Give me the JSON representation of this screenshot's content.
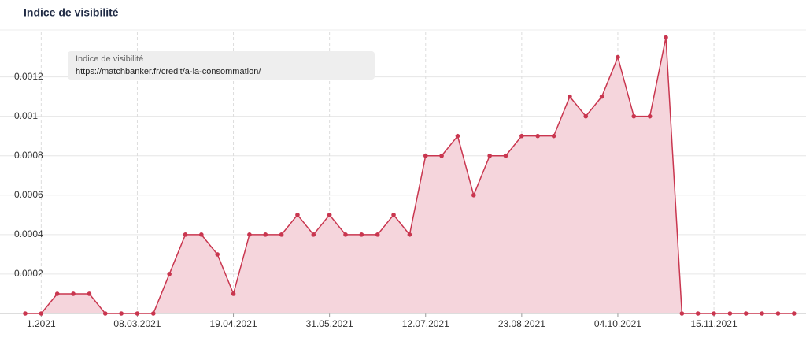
{
  "chart_data": {
    "type": "area",
    "title": "Indice de visibilité",
    "tooltip": {
      "title": "Indice de visibilité",
      "url": "https://matchbanker.fr/credit/a-la-consommation/"
    },
    "categories": [
      null,
      "1.2021",
      null,
      null,
      null,
      null,
      null,
      "08.03.2021",
      null,
      null,
      null,
      null,
      null,
      "19.04.2021",
      null,
      null,
      null,
      null,
      null,
      "31.05.2021",
      null,
      null,
      null,
      null,
      null,
      "12.07.2021",
      null,
      null,
      null,
      null,
      null,
      "23.08.2021",
      null,
      null,
      null,
      null,
      null,
      "04.10.2021",
      null,
      null,
      null,
      null,
      null,
      "15.11.2021",
      null,
      null,
      null,
      null,
      null
    ],
    "values": [
      0,
      0,
      0.0001,
      0.0001,
      0.0001,
      0,
      0,
      0,
      0,
      0.0002,
      0.0004,
      0.0004,
      0.0003,
      0.0001,
      0.0004,
      0.0004,
      0.0004,
      0.0005,
      0.0004,
      0.0005,
      0.0004,
      0.0004,
      0.0004,
      0.0005,
      0.0004,
      0.0008,
      0.0008,
      0.0009,
      0.0006,
      0.0008,
      0.0008,
      0.0009,
      0.0009,
      0.0009,
      0.0011,
      0.001,
      0.0011,
      0.0013,
      0.001,
      0.001,
      0.0014,
      0,
      0,
      0,
      0,
      0,
      0,
      0,
      0
    ],
    "color": "#c9364f",
    "fill": "#f5d5dc",
    "ylim": [
      0,
      0.00143
    ],
    "yticks": [
      0.0002,
      0.0004,
      0.0006,
      0.0008,
      0.001,
      0.0012
    ],
    "grid": true
  }
}
